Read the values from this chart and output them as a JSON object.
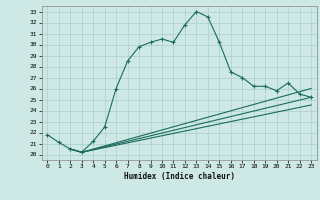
{
  "title": "",
  "xlabel": "Humidex (Indice chaleur)",
  "ylabel": "",
  "xlim": [
    -0.5,
    23.5
  ],
  "ylim": [
    19.5,
    33.5
  ],
  "xticks": [
    0,
    1,
    2,
    3,
    4,
    5,
    6,
    7,
    8,
    9,
    10,
    11,
    12,
    13,
    14,
    15,
    16,
    17,
    18,
    19,
    20,
    21,
    22,
    23
  ],
  "yticks": [
    20,
    21,
    22,
    23,
    24,
    25,
    26,
    27,
    28,
    29,
    30,
    31,
    32,
    33
  ],
  "bg_color": "#cde8e5",
  "grid_color": "#aacfcc",
  "line_color": "#1a6b5e",
  "curve1_x": [
    0,
    1,
    2,
    3,
    4,
    5,
    6,
    7,
    8,
    9,
    10,
    11,
    12,
    13,
    14,
    15,
    16,
    17,
    18,
    19,
    20,
    21,
    22,
    23
  ],
  "curve1_y": [
    21.8,
    21.1,
    20.5,
    20.2,
    21.2,
    22.5,
    26.0,
    28.5,
    29.8,
    30.2,
    30.5,
    30.2,
    31.8,
    33.0,
    32.5,
    30.2,
    27.5,
    27.0,
    26.2,
    26.2,
    25.8,
    26.5,
    25.5,
    25.2
  ],
  "curve2_x": [
    2,
    3,
    23
  ],
  "curve2_y": [
    20.5,
    20.2,
    26.0
  ],
  "curve3_x": [
    2,
    3,
    23
  ],
  "curve3_y": [
    20.5,
    20.2,
    25.2
  ],
  "curve4_x": [
    2,
    3,
    23
  ],
  "curve4_y": [
    20.5,
    20.2,
    24.5
  ]
}
